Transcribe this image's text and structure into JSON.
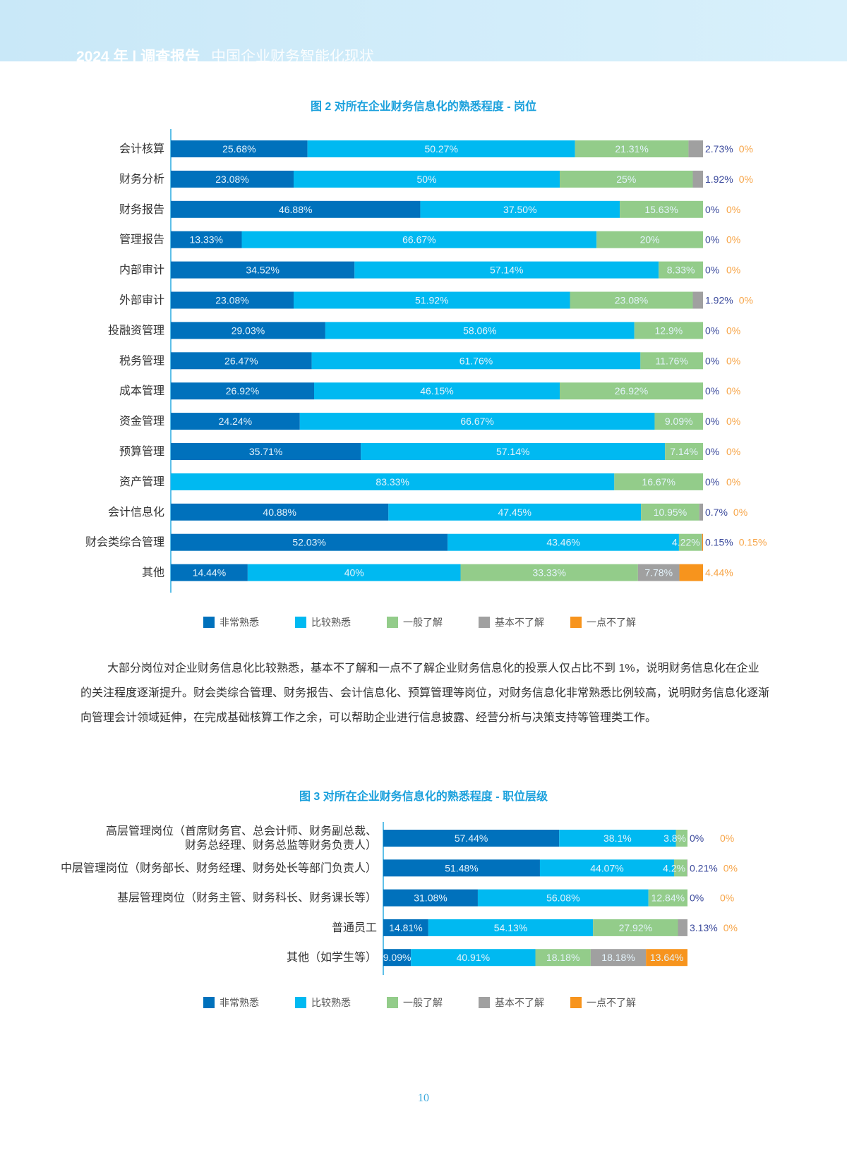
{
  "header": {
    "year": "2024 年",
    "sep": "|",
    "report": "调查报告",
    "subtitle": "中国企业财务智能化现状"
  },
  "colors": {
    "非常熟悉": "#0071bc",
    "比较熟悉": "#00b9f1",
    "一般了解": "#93cc8a",
    "基本不了解": "#a0a0a0",
    "一点不了解": "#f7941d",
    "inside_label": "#e4f3fb",
    "outside_gray_label": "#3b4a9c",
    "outside_orange_label": "#f7a446"
  },
  "legend": [
    "非常熟悉",
    "比较熟悉",
    "一般了解",
    "基本不了解",
    "一点不了解"
  ],
  "chart_data": [
    {
      "type": "bar",
      "orientation": "horizontal",
      "stacked": true,
      "title": "图 2 对所在企业财务信息化的熟悉程度 - 岗位",
      "series_names": [
        "非常熟悉",
        "比较熟悉",
        "一般了解",
        "基本不了解",
        "一点不了解"
      ],
      "categories": [
        "会计核算",
        "财务分析",
        "财务报告",
        "管理报告",
        "内部审计",
        "外部审计",
        "投融资管理",
        "税务管理",
        "成本管理",
        "资金管理",
        "预算管理",
        "资产管理",
        "会计信息化",
        "财会类综合管理",
        "其他"
      ],
      "values": [
        [
          25.68,
          50.27,
          21.31,
          2.73,
          0
        ],
        [
          23.08,
          50,
          25,
          1.92,
          0
        ],
        [
          46.88,
          37.5,
          15.63,
          0,
          0
        ],
        [
          13.33,
          66.67,
          20,
          0,
          0
        ],
        [
          34.52,
          57.14,
          8.33,
          0,
          0
        ],
        [
          23.08,
          51.92,
          23.08,
          1.92,
          0
        ],
        [
          29.03,
          58.06,
          12.9,
          0,
          0
        ],
        [
          26.47,
          61.76,
          11.76,
          0,
          0
        ],
        [
          26.92,
          46.15,
          26.92,
          0,
          0
        ],
        [
          24.24,
          66.67,
          9.09,
          0,
          0
        ],
        [
          35.71,
          57.14,
          7.14,
          0,
          0
        ],
        [
          0,
          83.33,
          16.67,
          0,
          0
        ],
        [
          40.88,
          47.45,
          10.95,
          0.7,
          0
        ],
        [
          52.03,
          43.46,
          4.22,
          0.15,
          0.15
        ],
        [
          14.44,
          40,
          33.33,
          7.78,
          4.44
        ]
      ],
      "labels": [
        [
          "25.68%",
          "50.27%",
          "21.31%",
          "2.73%",
          "0%"
        ],
        [
          "23.08%",
          "50%",
          "25%",
          "1.92%",
          "0%"
        ],
        [
          "46.88%",
          "37.50%",
          "15.63%",
          "0%",
          "0%"
        ],
        [
          "13.33%",
          "66.67%",
          "20%",
          "0%",
          "0%"
        ],
        [
          "34.52%",
          "57.14%",
          "8.33%",
          "0%",
          "0%"
        ],
        [
          "23.08%",
          "51.92%",
          "23.08%",
          "1.92%",
          "0%"
        ],
        [
          "29.03%",
          "58.06%",
          "12.9%",
          "0%",
          "0%"
        ],
        [
          "26.47%",
          "61.76%",
          "11.76%",
          "0%",
          "0%"
        ],
        [
          "26.92%",
          "46.15%",
          "26.92%",
          "0%",
          "0%"
        ],
        [
          "24.24%",
          "66.67%",
          "9.09%",
          "0%",
          "0%"
        ],
        [
          "35.71%",
          "57.14%",
          "7.14%",
          "0%",
          "0%"
        ],
        [
          "0%",
          "83.33%",
          "16.67%",
          "0%",
          "0%"
        ],
        [
          "40.88%",
          "47.45%",
          "10.95%",
          "0.7%",
          "0%"
        ],
        [
          "52.03%",
          "43.46%",
          "4.22%",
          "0.15%",
          "0.15%"
        ],
        [
          "14.44%",
          "40%",
          "33.33%",
          "7.78%",
          "4.44%"
        ]
      ],
      "xlim": [
        0,
        100
      ],
      "legend_position": "bottom"
    },
    {
      "type": "bar",
      "orientation": "horizontal",
      "stacked": true,
      "title": "图 3 对所在企业财务信息化的熟悉程度 - 职位层级",
      "series_names": [
        "非常熟悉",
        "比较熟悉",
        "一般了解",
        "基本不了解",
        "一点不了解"
      ],
      "categories": [
        [
          "高层管理岗位（首席财务官、总会计师、财务副总裁、",
          "财务总经理、财务总监等财务负责人）"
        ],
        [
          "中层管理岗位（财务部长、财务经理、财务处长等部门负责人）"
        ],
        [
          "基层管理岗位（财务主管、财务科长、财务课长等）"
        ],
        [
          "普通员工"
        ],
        [
          "其他（如学生等）"
        ]
      ],
      "values": [
        [
          57.44,
          38.1,
          3.8,
          0,
          0
        ],
        [
          51.48,
          44.07,
          4.2,
          0.21,
          0
        ],
        [
          31.08,
          56.08,
          12.84,
          0,
          0
        ],
        [
          14.81,
          54.13,
          27.92,
          3.13,
          0
        ],
        [
          9.09,
          40.91,
          18.18,
          18.18,
          13.64
        ]
      ],
      "labels": [
        [
          "57.44%",
          "38.1%",
          "3.8%",
          "0%",
          "0%"
        ],
        [
          "51.48%",
          "44.07%",
          "4.2%",
          "0.21%",
          "0%"
        ],
        [
          "31.08%",
          "56.08%",
          "12.84%",
          "0%",
          "0%"
        ],
        [
          "14.81%",
          "54.13%",
          "27.92%",
          "3.13%",
          "0%"
        ],
        [
          "9.09%",
          "40.91%",
          "18.18%",
          "18.18%",
          "13.64%"
        ]
      ],
      "xlim": [
        0,
        100
      ],
      "legend_position": "bottom"
    }
  ],
  "body_text": "大部分岗位对企业财务信息化比较熟悉，基本不了解和一点不了解企业财务信息化的投票人仅占比不到 1%，说明财务信息化在企业的关注程度逐渐提升。财会类综合管理、财务报告、会计信息化、预算管理等岗位，对财务信息化非常熟悉比例较高，说明财务信息化逐渐向管理会计领域延伸，在完成基础核算工作之余，可以帮助企业进行信息披露、经营分析与决策支持等管理类工作。",
  "page_number": "10"
}
